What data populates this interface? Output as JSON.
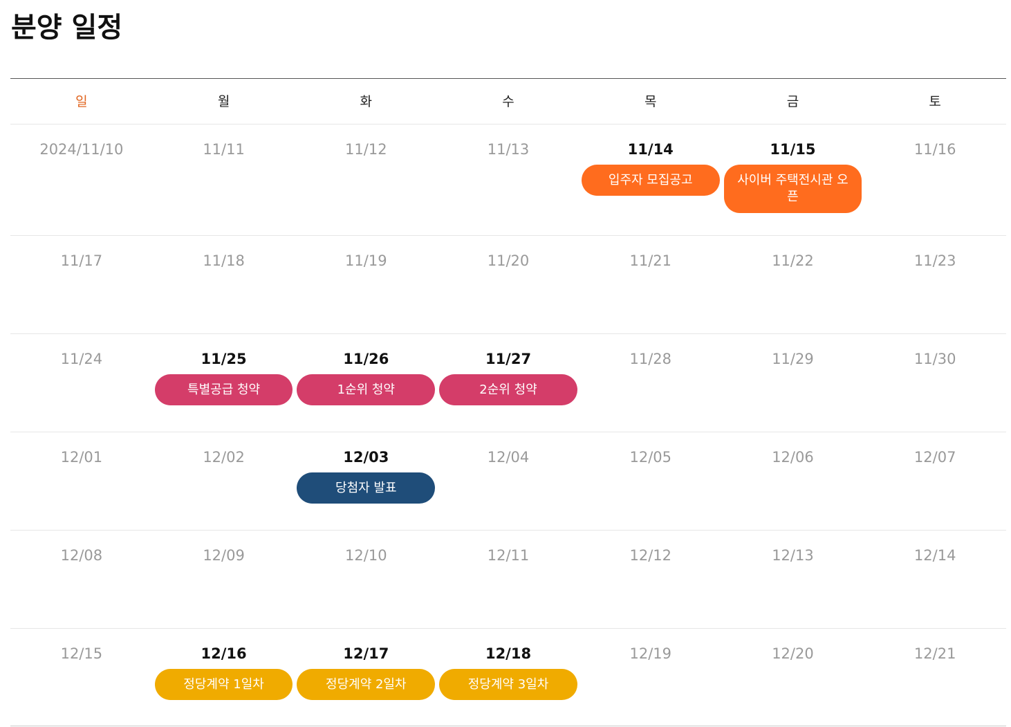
{
  "title": "분양 일정",
  "weekdays": [
    "일",
    "월",
    "화",
    "수",
    "목",
    "금",
    "토"
  ],
  "colors": {
    "sunday": "#e0641e",
    "announcement": "#ff6c1e",
    "subscription": "#d43d69",
    "winner": "#1f4d79",
    "contract": "#f0ab00"
  },
  "weeks": [
    {
      "days": [
        {
          "date": "2024/11/10"
        },
        {
          "date": "11/11"
        },
        {
          "date": "11/12"
        },
        {
          "date": "11/13"
        },
        {
          "date": "11/14",
          "event": "입주자 모집공고"
        },
        {
          "date": "11/15",
          "event": "사이버 주택전시관 오픈"
        },
        {
          "date": "11/16"
        }
      ]
    },
    {
      "days": [
        {
          "date": "11/17"
        },
        {
          "date": "11/18"
        },
        {
          "date": "11/19"
        },
        {
          "date": "11/20"
        },
        {
          "date": "11/21"
        },
        {
          "date": "11/22"
        },
        {
          "date": "11/23"
        }
      ]
    },
    {
      "days": [
        {
          "date": "11/24"
        },
        {
          "date": "11/25",
          "event": "특별공급 청약"
        },
        {
          "date": "11/26",
          "event": "1순위 청약"
        },
        {
          "date": "11/27",
          "event": "2순위 청약"
        },
        {
          "date": "11/28"
        },
        {
          "date": "11/29"
        },
        {
          "date": "11/30"
        }
      ]
    },
    {
      "days": [
        {
          "date": "12/01"
        },
        {
          "date": "12/02"
        },
        {
          "date": "12/03",
          "event": "당첨자 발표"
        },
        {
          "date": "12/04"
        },
        {
          "date": "12/05"
        },
        {
          "date": "12/06"
        },
        {
          "date": "12/07"
        }
      ]
    },
    {
      "days": [
        {
          "date": "12/08"
        },
        {
          "date": "12/09"
        },
        {
          "date": "12/10"
        },
        {
          "date": "12/11"
        },
        {
          "date": "12/12"
        },
        {
          "date": "12/13"
        },
        {
          "date": "12/14"
        }
      ]
    },
    {
      "days": [
        {
          "date": "12/15"
        },
        {
          "date": "12/16",
          "event": "정당계약 1일차"
        },
        {
          "date": "12/17",
          "event": "정당계약 2일차"
        },
        {
          "date": "12/18",
          "event": "정당계약 3일차"
        },
        {
          "date": "12/19"
        },
        {
          "date": "12/20"
        },
        {
          "date": "12/21"
        }
      ]
    }
  ]
}
